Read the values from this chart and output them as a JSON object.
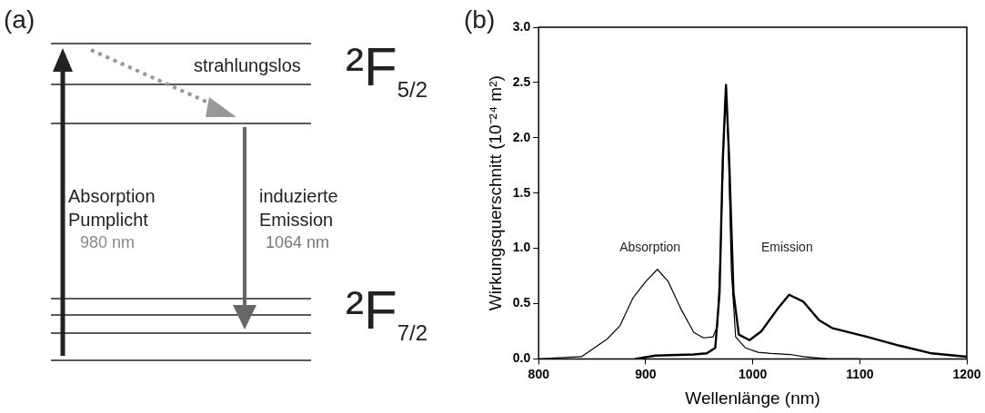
{
  "chart_data": [
    {
      "type": "other",
      "title": "(a)",
      "annotations": [
        "strahlungslos",
        "²F$_{5/2}$",
        "Absorption",
        "Pumplicht",
        "980 nm",
        "induzierte",
        "Emission",
        "1064 nm",
        "²F$_{7/2}$"
      ]
    },
    {
      "type": "line",
      "title": "(b)",
      "xlabel": "Wellenlänge (nm)",
      "ylabel": "Wirkungsquerschnitt (10⁻²⁴ m²)",
      "xlim": [
        800,
        1200
      ],
      "xticks": [
        800,
        900,
        1000,
        1100,
        1200
      ],
      "ylim": [
        0,
        3
      ],
      "yticks": [
        {
          "value": 0,
          "label": "0.0"
        },
        {
          "value": 0.5,
          "label": "0.5"
        },
        {
          "value": 1,
          "label": "1.0"
        },
        {
          "value": 1.5,
          "label": "1.5"
        },
        {
          "value": 2,
          "label": "2.0"
        },
        {
          "value": 2.5,
          "label": "2.5"
        },
        {
          "value": 3,
          "label": "3.0"
        }
      ],
      "grid": false,
      "marker": "none",
      "series": [
        {
          "color": "#000000",
          "x": [
            800,
            820,
            840,
            852,
            864,
            876,
            888,
            900,
            911,
            921,
            933,
            945,
            954,
            963,
            967,
            970,
            973,
            975,
            977,
            980,
            984,
            993,
            1005,
            1017,
            1035,
            1047,
            1071,
            1100
          ],
          "values": [
            0.0,
            0.01,
            0.02,
            0.1,
            0.18,
            0.3,
            0.55,
            0.7,
            0.81,
            0.7,
            0.45,
            0.24,
            0.19,
            0.2,
            0.3,
            1.0,
            2.0,
            2.47,
            2.0,
            0.8,
            0.2,
            0.1,
            0.06,
            0.05,
            0.04,
            0.02,
            0.0,
            0.0
          ]
        },
        {
          "color": "#000000",
          "x": [
            890,
            909,
            945,
            957,
            965,
            969,
            972,
            975,
            978,
            982,
            987,
            997,
            1008,
            1023,
            1034,
            1047,
            1062,
            1074,
            1107,
            1137,
            1167,
            1200
          ],
          "values": [
            0.0,
            0.03,
            0.04,
            0.05,
            0.1,
            0.6,
            1.8,
            2.48,
            1.8,
            0.6,
            0.22,
            0.17,
            0.25,
            0.45,
            0.58,
            0.52,
            0.35,
            0.28,
            0.2,
            0.12,
            0.05,
            0.02
          ]
        }
      ],
      "annotations": [
        "Absorption",
        "Emission"
      ]
    }
  ]
}
